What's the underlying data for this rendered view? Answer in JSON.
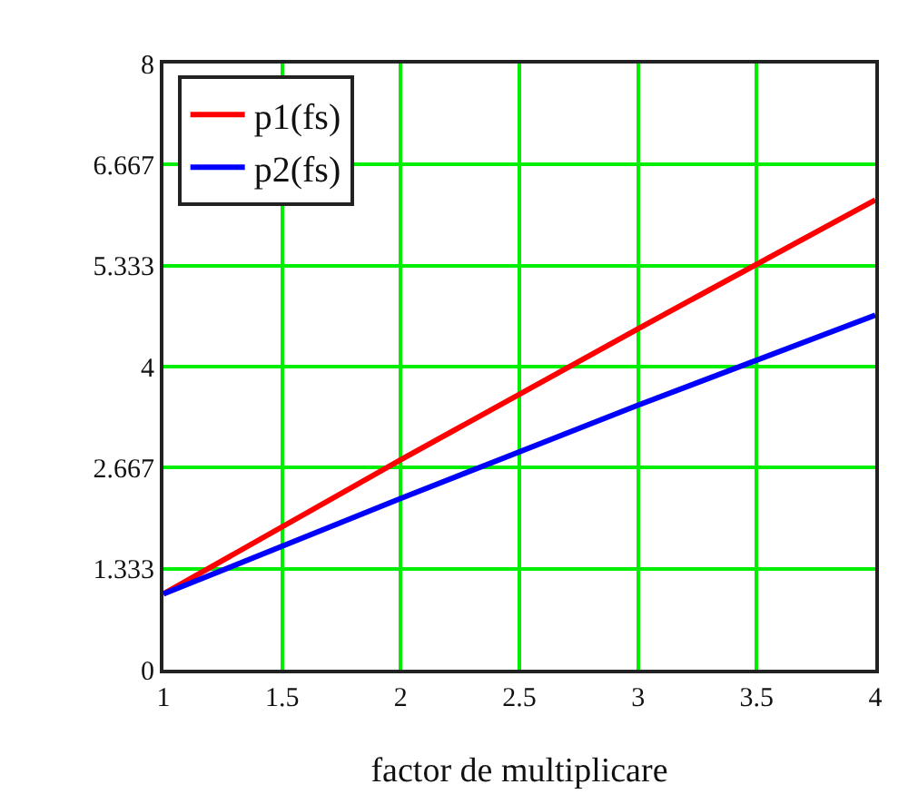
{
  "chart_data": {
    "type": "line",
    "xlabel": "factor de multiplicare",
    "x": [
      1,
      2,
      3,
      4
    ],
    "series": [
      {
        "name": "p1(fs)",
        "color": "#ff0000",
        "values": [
          1.0,
          2.77,
          4.5,
          6.2
        ]
      },
      {
        "name": "p2(fs)",
        "color": "#0000ff",
        "values": [
          1.0,
          2.26,
          3.49,
          4.68
        ]
      }
    ],
    "xlim": [
      1,
      4
    ],
    "xticks": [
      1,
      1.5,
      2,
      2.5,
      3,
      3.5,
      4
    ],
    "ylim": [
      0,
      8
    ],
    "yticks": [
      0,
      1.333,
      2.667,
      4,
      5.333,
      6.667,
      8
    ],
    "grid": true,
    "legend": "top left",
    "line_style": "solid",
    "marker": "none"
  }
}
